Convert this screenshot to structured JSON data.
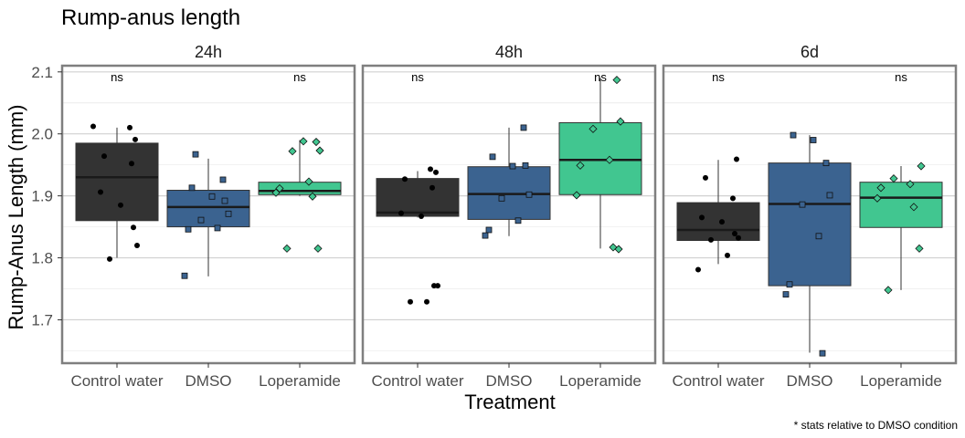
{
  "chart_data": {
    "type": "box",
    "title": "Rump-anus length",
    "xlabel": "Treatment",
    "ylabel": "Rump-Anus Length (mm)",
    "caption": "* stats relative to DMSO condition",
    "ylim": [
      1.63,
      2.11
    ],
    "yticks": [
      1.7,
      1.8,
      1.9,
      2.0,
      2.1
    ],
    "ytick_labels": [
      "1.7",
      "1.8",
      "1.9",
      "2.0",
      "2.1"
    ],
    "categories": [
      "Control water",
      "DMSO",
      "Loperamide"
    ],
    "colors": {
      "Control water": "#333333",
      "DMSO": "#3b6390",
      "Loperamide": "#41c690"
    },
    "grid": true,
    "legend": "none",
    "panels": [
      {
        "label": "24h",
        "significance": [
          {
            "category": "Control water",
            "text": "ns"
          },
          {
            "category": "Loperamide",
            "text": "ns"
          }
        ],
        "boxes": [
          {
            "category": "Control water",
            "min": 1.8,
            "q1": 1.86,
            "median": 1.93,
            "q3": 1.985,
            "max": 2.01,
            "points": [
              2.012,
              2.01,
              1.991,
              1.964,
              1.952,
              1.906,
              1.885,
              1.849,
              1.82,
              1.798
            ]
          },
          {
            "category": "DMSO",
            "min": 1.77,
            "q1": 1.85,
            "median": 1.882,
            "q3": 1.909,
            "max": 1.96,
            "points": [
              1.967,
              1.926,
              1.913,
              1.899,
              1.892,
              1.871,
              1.861,
              1.848,
              1.846,
              1.771
            ]
          },
          {
            "category": "Loperamide",
            "min": 1.9,
            "q1": 1.902,
            "median": 1.908,
            "q3": 1.922,
            "max": 1.99,
            "points": [
              1.988,
              1.987,
              1.973,
              1.972,
              1.923,
              1.912,
              1.905,
              1.899,
              1.815,
              1.815
            ]
          }
        ]
      },
      {
        "label": "48h",
        "significance": [
          {
            "category": "Control water",
            "text": "ns"
          },
          {
            "category": "Loperamide",
            "text": "ns"
          }
        ],
        "boxes": [
          {
            "category": "Control water",
            "min": 1.865,
            "q1": 1.867,
            "median": 1.873,
            "q3": 1.928,
            "max": 1.94,
            "points": [
              1.943,
              1.938,
              1.927,
              1.913,
              1.872,
              1.867,
              1.755,
              1.755,
              1.729,
              1.729
            ]
          },
          {
            "category": "DMSO",
            "min": 1.835,
            "q1": 1.862,
            "median": 1.903,
            "q3": 1.947,
            "max": 2.01,
            "points": [
              2.01,
              1.963,
              1.948,
              1.949,
              1.902,
              1.896,
              1.86,
              1.845,
              1.836
            ]
          },
          {
            "category": "Loperamide",
            "min": 1.815,
            "q1": 1.902,
            "median": 1.958,
            "q3": 2.018,
            "max": 2.09,
            "points": [
              2.087,
              2.02,
              2.008,
              1.958,
              1.949,
              1.901,
              1.817,
              1.814
            ]
          }
        ]
      },
      {
        "label": "6d",
        "significance": [
          {
            "category": "Control water",
            "text": "ns"
          },
          {
            "category": "Loperamide",
            "text": "ns"
          }
        ],
        "boxes": [
          {
            "category": "Control water",
            "min": 1.79,
            "q1": 1.828,
            "median": 1.845,
            "q3": 1.889,
            "max": 1.958,
            "points": [
              1.959,
              1.929,
              1.896,
              1.865,
              1.858,
              1.839,
              1.832,
              1.829,
              1.804,
              1.781
            ]
          },
          {
            "category": "DMSO",
            "min": 1.647,
            "q1": 1.755,
            "median": 1.887,
            "q3": 1.953,
            "max": 1.998,
            "points": [
              1.998,
              1.99,
              1.953,
              1.901,
              1.886,
              1.835,
              1.757,
              1.741,
              1.646
            ]
          },
          {
            "category": "Loperamide",
            "min": 1.748,
            "q1": 1.849,
            "median": 1.897,
            "q3": 1.922,
            "max": 1.948,
            "points": [
              1.948,
              1.928,
              1.919,
              1.913,
              1.896,
              1.882,
              1.815,
              1.748
            ]
          }
        ]
      }
    ]
  }
}
